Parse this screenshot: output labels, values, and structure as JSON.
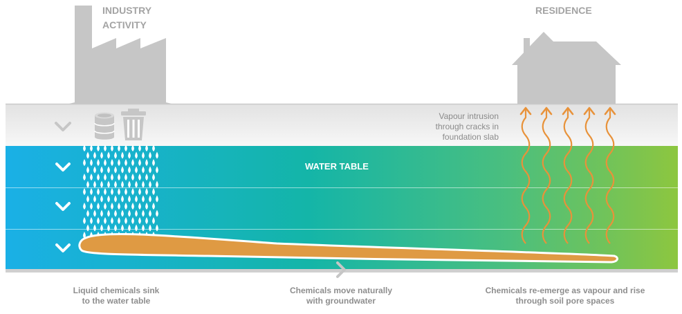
{
  "labels": {
    "industry_line1": "INDUSTRY",
    "industry_line2": "ACTIVITY",
    "residence": "RESIDENCE",
    "water_table": "WATER TABLE",
    "vapour_line1": "Vapour intrusion",
    "vapour_line2": "through cracks in",
    "vapour_line3": "foundation slab"
  },
  "captions": {
    "left_line1": "Liquid chemicals sink",
    "left_line2": "to the water table",
    "middle_line1": "Chemicals move naturally",
    "middle_line2": "with groundwater",
    "right_line1": "Chemicals re-emerge as vapour and rise",
    "right_line2": "through soil pore spaces"
  },
  "icons": {
    "factory": "factory-icon",
    "house": "house-icon",
    "barrel": "barrel-icon",
    "trash": "trash-can-icon",
    "arrow_down": "chevron-down-icon",
    "arrow_right": "chevron-right-icon"
  },
  "colors": {
    "grey": "#c6c6c6",
    "water_left": "#1ab0e6",
    "water_mid": "#14b8a6",
    "water_right": "#8dc63f",
    "plume": "#df9a43",
    "vapour": "#e8923a"
  }
}
